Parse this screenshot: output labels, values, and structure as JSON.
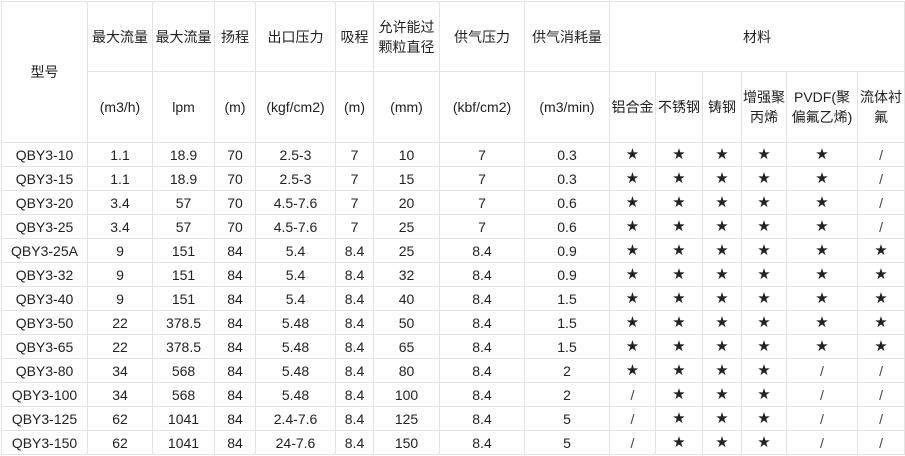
{
  "header": {
    "model": "型号",
    "columns": [
      {
        "title": "最大流量",
        "unit": "(m3/h)"
      },
      {
        "title": "最大流量",
        "unit": "lpm"
      },
      {
        "title": "扬程",
        "unit": "(m)"
      },
      {
        "title": "出口压力",
        "unit": "(kgf/cm2)"
      },
      {
        "title": "吸程",
        "unit": "(m)"
      },
      {
        "title": "允许能过颗粒直径",
        "unit": "(mm)"
      },
      {
        "title": "供气压力",
        "unit": "(kbf/cm2)"
      },
      {
        "title": "供气消耗量",
        "unit": "(m3/min)"
      }
    ],
    "materials_title": "材料",
    "materials": [
      "铝合金",
      "不锈钢",
      "铸钢",
      "增强聚丙烯",
      "PVDF(聚偏氟乙烯)",
      "流体衬氟"
    ]
  },
  "rows": [
    [
      "QBY3-10",
      "1.1",
      "18.9",
      "70",
      "2.5-3",
      "7",
      "10",
      "7",
      "0.3",
      "★",
      "★",
      "★",
      "★",
      "★",
      "/"
    ],
    [
      "QBY3-15",
      "1.1",
      "18.9",
      "70",
      "2.5-3",
      "7",
      "15",
      "7",
      "0.3",
      "★",
      "★",
      "★",
      "★",
      "★",
      "/"
    ],
    [
      "QBY3-20",
      "3.4",
      "57",
      "70",
      "4.5-7.6",
      "7",
      "20",
      "7",
      "0.6",
      "★",
      "★",
      "★",
      "★",
      "★",
      "/"
    ],
    [
      "QBY3-25",
      "3.4",
      "57",
      "70",
      "4.5-7.6",
      "7",
      "25",
      "7",
      "0.6",
      "★",
      "★",
      "★",
      "★",
      "★",
      "/"
    ],
    [
      "QBY3-25A",
      "9",
      "151",
      "84",
      "5.4",
      "8.4",
      "25",
      "8.4",
      "0.9",
      "★",
      "★",
      "★",
      "★",
      "★",
      "★"
    ],
    [
      "QBY3-32",
      "9",
      "151",
      "84",
      "5.4",
      "8.4",
      "32",
      "8.4",
      "0.9",
      "★",
      "★",
      "★",
      "★",
      "★",
      "★"
    ],
    [
      "QBY3-40",
      "9",
      "151",
      "84",
      "5.4",
      "8.4",
      "40",
      "8.4",
      "1.5",
      "★",
      "★",
      "★",
      "★",
      "★",
      "★"
    ],
    [
      "QBY3-50",
      "22",
      "378.5",
      "84",
      "5.48",
      "8.4",
      "50",
      "8.4",
      "1.5",
      "★",
      "★",
      "★",
      "★",
      "★",
      "★"
    ],
    [
      "QBY3-65",
      "22",
      "378.5",
      "84",
      "5.48",
      "8.4",
      "65",
      "8.4",
      "1.5",
      "★",
      "★",
      "★",
      "★",
      "★",
      "★"
    ],
    [
      "QBY3-80",
      "34",
      "568",
      "84",
      "5.48",
      "8.4",
      "80",
      "8.4",
      "2",
      "★",
      "★",
      "★",
      "★",
      "/",
      "/"
    ],
    [
      "QBY3-100",
      "34",
      "568",
      "84",
      "5.48",
      "8.4",
      "100",
      "8.4",
      "2",
      "/",
      "★",
      "★",
      "★",
      "/",
      "/"
    ],
    [
      "QBY3-125",
      "62",
      "1041",
      "84",
      "2.4-7.6",
      "8.4",
      "125",
      "8.4",
      "5",
      "/",
      "★",
      "★",
      "★",
      "/",
      "/"
    ],
    [
      "QBY3-150",
      "62",
      "1041",
      "84",
      "24-7.6",
      "8.4",
      "150",
      "8.4",
      "5",
      "/",
      "★",
      "★",
      "★",
      "/",
      "/"
    ]
  ]
}
